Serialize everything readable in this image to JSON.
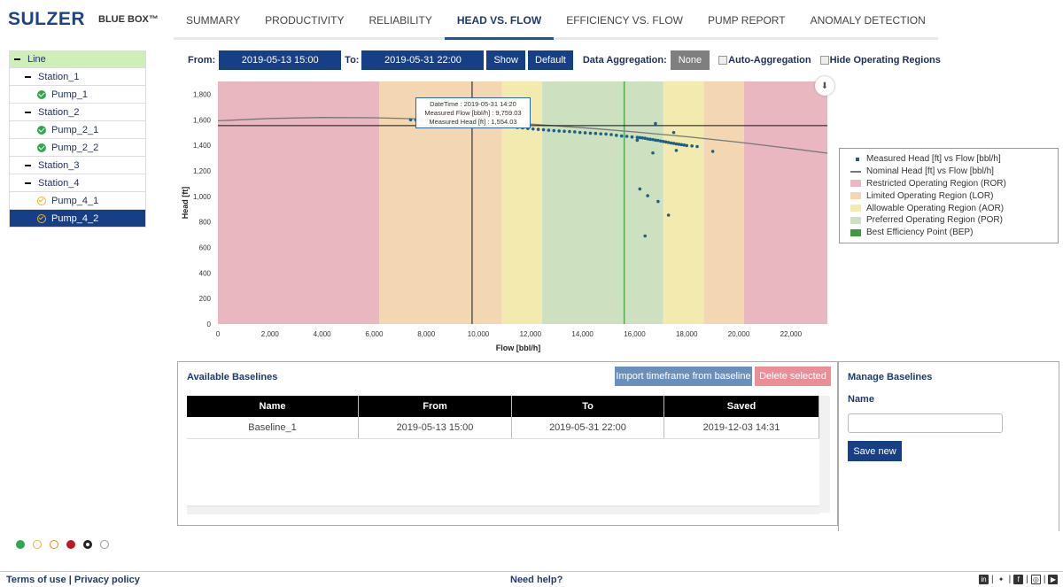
{
  "brand": {
    "logo": "SULZER",
    "product": "BLUE BOX™"
  },
  "nav": [
    "SUMMARY",
    "PRODUCTIVITY",
    "RELIABILITY",
    "HEAD VS. FLOW",
    "EFFICIENCY VS. FLOW",
    "PUMP REPORT",
    "ANOMALY DETECTION"
  ],
  "tree": [
    {
      "label": "Line",
      "level": 0,
      "icon": "minus"
    },
    {
      "label": "Station_1",
      "level": 1,
      "icon": "minus"
    },
    {
      "label": "Pump_1",
      "level": 2,
      "icon": "check-ok"
    },
    {
      "label": "Station_2",
      "level": 1,
      "icon": "minus"
    },
    {
      "label": "Pump_2_1",
      "level": 2,
      "icon": "check-ok"
    },
    {
      "label": "Pump_2_2",
      "level": 2,
      "icon": "check-ok"
    },
    {
      "label": "Station_3",
      "level": 1,
      "icon": "minus"
    },
    {
      "label": "Station_4",
      "level": 1,
      "icon": "minus"
    },
    {
      "label": "Pump_4_1",
      "level": 2,
      "icon": "check-warning"
    },
    {
      "label": "Pump_4_2",
      "level": 2,
      "icon": "check-warning"
    }
  ],
  "toolbar": {
    "from_label": "From:",
    "from_value": "2019-05-13 15:00",
    "to_label": "To:",
    "to_value": "2019-05-31 22:00",
    "show": "Show",
    "default": "Default",
    "aggregation_label": "Data Aggregation:",
    "aggregation_value": "None",
    "auto_aggregation": "Auto-Aggregation",
    "hide_regions": "Hide Operating Regions"
  },
  "tooltip": {
    "line1": "DateTime : 2019-05-31 14:20",
    "line2": "Measured Flow [bbl/h] : 9,759.03",
    "line3": "Measured Head [ft] : 1,554.03"
  },
  "chart_data": {
    "type": "scatter",
    "xlabel": "Flow [bbl/h]",
    "ylabel": "Head [ft]",
    "xlim": [
      0,
      23400
    ],
    "ylim": [
      0,
      1900
    ],
    "x_ticks": [
      0,
      2000,
      4000,
      6000,
      8000,
      10000,
      12000,
      14000,
      16000,
      18000,
      20000,
      22000
    ],
    "x_tick_labels": [
      "0",
      "2,000",
      "4,000",
      "6,000",
      "8,000",
      "10,000",
      "12,000",
      "14,000",
      "16,000",
      "18,000",
      "20,000",
      "22,000"
    ],
    "y_ticks": [
      0,
      200,
      400,
      600,
      800,
      1000,
      1200,
      1400,
      1600,
      1800
    ],
    "y_tick_labels": [
      "0",
      "200",
      "400",
      "600",
      "800",
      "1,000",
      "1,200",
      "1,400",
      "1,600",
      "1,800"
    ],
    "regions": [
      {
        "name": "ROR",
        "from": 0,
        "to": 6200,
        "color": "#e8b7bf"
      },
      {
        "name": "LOR",
        "from": 6200,
        "to": 10900,
        "color": "#f3d7b3"
      },
      {
        "name": "AOR",
        "from": 10900,
        "to": 12450,
        "color": "#f3eab0"
      },
      {
        "name": "POR",
        "from": 12450,
        "to": 17100,
        "color": "#cde0c0"
      },
      {
        "name": "AOR",
        "from": 17100,
        "to": 18650,
        "color": "#f3eab0"
      },
      {
        "name": "LOR",
        "from": 18650,
        "to": 20200,
        "color": "#f3d7b3"
      },
      {
        "name": "ROR",
        "from": 20200,
        "to": 23400,
        "color": "#e8b7bf"
      }
    ],
    "bep_x": 15600,
    "crosshair": {
      "x": 9759.03,
      "y": 1554.03
    },
    "nominal_curve": {
      "name": "Nominal Head [ft] vs Flow [bbl/h]",
      "x": [
        0,
        2000,
        4000,
        6000,
        8000,
        10000,
        12000,
        14000,
        16000,
        18000,
        20000,
        22000,
        23400
      ],
      "y": [
        1592,
        1610,
        1618,
        1616,
        1605,
        1588,
        1566,
        1538,
        1505,
        1467,
        1424,
        1375,
        1338
      ]
    },
    "measured": {
      "name": "Measured Head [ft] vs Flow [bbl/h]",
      "x": [
        7400,
        7600,
        7800,
        8000,
        8200,
        8400,
        8600,
        8800,
        9000,
        9200,
        9400,
        9600,
        9759,
        9900,
        10100,
        10300,
        10500,
        10700,
        10900,
        11100,
        11300,
        11500,
        11700,
        11900,
        12100,
        12300,
        12500,
        12700,
        12900,
        13100,
        13300,
        13500,
        13700,
        13900,
        14100,
        14300,
        14500,
        14700,
        14900,
        15100,
        15300,
        15500,
        15700,
        15900,
        16100,
        16200,
        16300,
        16400,
        16500,
        16600,
        16700,
        16800,
        16900,
        17000,
        17100,
        17200,
        17300,
        17400,
        17500,
        17600,
        17700,
        17800,
        17900,
        18000,
        18200,
        18400,
        19000,
        16800,
        17500,
        16200,
        16500,
        16900,
        17300,
        16400,
        17600,
        16100,
        16700
      ],
      "y": [
        1600,
        1598,
        1596,
        1594,
        1592,
        1590,
        1588,
        1586,
        1582,
        1578,
        1572,
        1566,
        1554,
        1560,
        1565,
        1560,
        1556,
        1553,
        1550,
        1548,
        1545,
        1540,
        1536,
        1532,
        1528,
        1525,
        1522,
        1518,
        1515,
        1512,
        1510,
        1508,
        1505,
        1500,
        1498,
        1495,
        1493,
        1490,
        1488,
        1484,
        1478,
        1473,
        1470,
        1465,
        1462,
        1460,
        1458,
        1455,
        1450,
        1447,
        1445,
        1440,
        1438,
        1433,
        1430,
        1426,
        1422,
        1418,
        1415,
        1411,
        1408,
        1405,
        1402,
        1398,
        1395,
        1390,
        1352,
        1570,
        1500,
        1058,
        1005,
        960,
        853,
        690,
        1360,
        1440,
        1340
      ]
    },
    "legend": [
      {
        "label": "Measured Head [ft] vs Flow [bbl/h]",
        "kind": "point",
        "color": "#1f5f80"
      },
      {
        "label": "Nominal Head [ft] vs Flow [bbl/h]",
        "kind": "line",
        "color": "#777777"
      },
      {
        "label": "Restricted Operating Region (ROR)",
        "kind": "box",
        "color": "#e8b7bf"
      },
      {
        "label": "Limited Operating Region (LOR)",
        "kind": "box",
        "color": "#f3d7b3"
      },
      {
        "label": "Allowable Operating Region (AOR)",
        "kind": "box",
        "color": "#f3eab0"
      },
      {
        "label": "Preferred Operating Region (POR)",
        "kind": "box",
        "color": "#cde0c0"
      },
      {
        "label": "Best Efficiency Point (BEP)",
        "kind": "box",
        "color": "#3f9a3f"
      }
    ]
  },
  "baselines": {
    "title": "Available Baselines",
    "import_button": "Import timeframe from baseline",
    "delete_button": "Delete selected",
    "columns": [
      "Name",
      "From",
      "To",
      "Saved"
    ],
    "rows": [
      [
        "Baseline_1",
        "2019-05-13 15:00",
        "2019-05-31 22:00",
        "2019-12-03 14:31"
      ]
    ]
  },
  "manage": {
    "title": "Manage Baselines",
    "name_label": "Name",
    "name_value": "",
    "save_button": "Save new"
  },
  "status_legend": [
    "ok-icon",
    "warning-check-icon",
    "warning-icon",
    "alarm-icon",
    "stopped-icon",
    "disabled-icon"
  ],
  "footer": {
    "terms": "Terms of use",
    "separator": "|",
    "privacy": "Privacy policy",
    "help": "Need help?",
    "social": [
      "linkedin-icon",
      "twitter-icon",
      "facebook-icon",
      "instagram-icon",
      "youtube-icon"
    ]
  }
}
